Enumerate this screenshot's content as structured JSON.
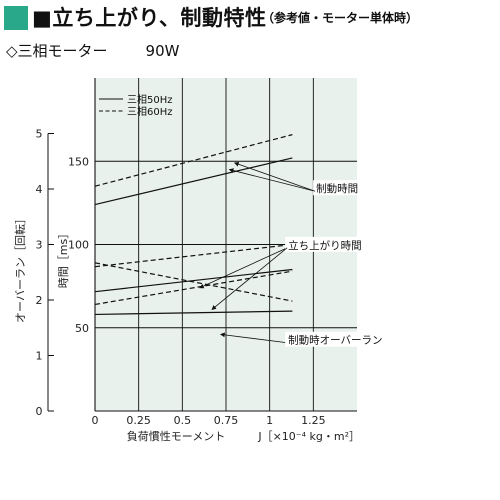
{
  "header": {
    "title": "■立ち上がり、制動特性",
    "subtitle": "（参考値・モーター単体時）",
    "accent_color": "#2aa88a"
  },
  "motor": {
    "label": "◇三相モーター",
    "power": "90W"
  },
  "chart_data": {
    "type": "line",
    "background": "#e8f1ec",
    "grid": true,
    "x": [
      0,
      1.13
    ],
    "xlabel": "負荷慣性モーメント",
    "xunit": "J［×10⁻⁴ kg・m²］",
    "xlim": [
      0,
      1.5
    ],
    "xticks": [
      "0",
      "0.25",
      "0.5",
      "0.75",
      "1",
      "1.25"
    ],
    "ylabel": "時間［ms］",
    "ylim": [
      0,
      200
    ],
    "yticks": [
      "50",
      "100",
      "150"
    ],
    "ylabel2": "オーバーラン［回転］",
    "ylim2": [
      0,
      6
    ],
    "yticks2": [
      "0",
      "1",
      "2",
      "3",
      "4",
      "5"
    ],
    "legend": [
      {
        "label": "三相50Hz",
        "style": "solid"
      },
      {
        "label": "三相60Hz",
        "style": "dashed"
      }
    ],
    "series": [
      {
        "group": "制動時間",
        "freq": "三相50Hz",
        "style": "solid",
        "axis": "left",
        "values": [
          124,
          152
        ]
      },
      {
        "group": "制動時間",
        "freq": "三相60Hz",
        "style": "dashed",
        "axis": "left",
        "values": [
          135,
          166
        ]
      },
      {
        "group": "立ち上がり時間",
        "freq": "三相50Hz",
        "style": "solid",
        "axis": "left",
        "values": [
          58,
          60
        ]
      },
      {
        "group": "立ち上がり時間",
        "freq": "三相60Hz",
        "style": "dashed",
        "axis": "left",
        "values": [
          64,
          84
        ]
      },
      {
        "group": "立ち上がり時間",
        "freq": "三相60Hz",
        "style": "dashed",
        "axis": "left",
        "values": [
          89,
          66
        ]
      },
      {
        "group": "制動時オーバーラン",
        "freq": "三相50Hz",
        "style": "solid",
        "axis": "right",
        "values": [
          2.15,
          2.55
        ]
      },
      {
        "group": "制動時オーバーラン",
        "freq": "三相60Hz",
        "style": "dashed",
        "axis": "right",
        "values": [
          2.6,
          3.0
        ]
      }
    ],
    "annotations": [
      {
        "text": "制動時間",
        "x": 0.77,
        "y": 145,
        "tx": 1.26,
        "ty": 132
      },
      {
        "text": "制動時間",
        "x": 0.8,
        "y": 149,
        "tx": 1.26,
        "ty": 132
      },
      {
        "text": "立ち上がり時間",
        "x": 0.6,
        "y": 74,
        "tx": 1.1,
        "ty": 98
      },
      {
        "text": "立ち上がり時間",
        "x": 0.67,
        "y": 61,
        "tx": 1.1,
        "ty": 98
      },
      {
        "text": "制動時オーバーラン",
        "x": 0.72,
        "y": 46,
        "tx": 1.1,
        "ty": 41
      }
    ]
  }
}
